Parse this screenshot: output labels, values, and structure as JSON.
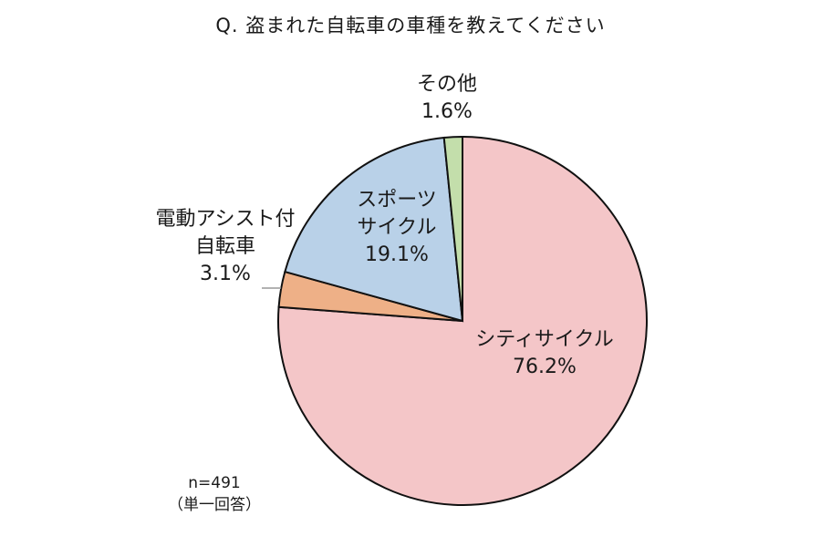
{
  "title": "Q. 盗まれた自転車の車種を教えてください",
  "note": {
    "n": "n=491",
    "answer_type": "（単一回答）"
  },
  "chart_data": {
    "type": "pie",
    "title": "Q. 盗まれた自転車の車種を教えてください",
    "start_angle": "12 o'clock, clockwise",
    "categories": [
      "シティサイクル",
      "電動アシスト付自転車",
      "スポーツサイクル",
      "その他"
    ],
    "values": [
      76.2,
      3.1,
      19.1,
      1.6
    ],
    "unit": "%",
    "colors": [
      "#f4c6c8",
      "#eeb087",
      "#b9d1e8",
      "#c3deab"
    ],
    "sample_size": 491,
    "note": "（単一回答）"
  },
  "labels": {
    "city": {
      "line1": "シティサイクル",
      "pct": "76.2%"
    },
    "electric": {
      "line1": "電動アシスト付",
      "line2": "自転車",
      "pct": "3.1%"
    },
    "sports": {
      "line1": "スポーツ",
      "line2": "サイクル",
      "pct": "19.1%"
    },
    "other": {
      "line1": "その他",
      "pct": "1.6%"
    }
  }
}
